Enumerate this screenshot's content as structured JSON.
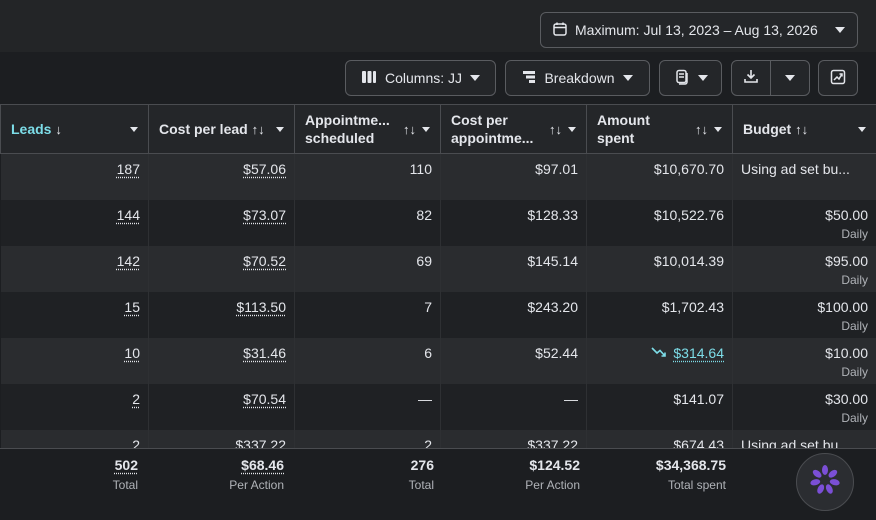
{
  "date_range": {
    "label": "Maximum: Jul 13, 2023 – Aug 13, 2026"
  },
  "toolbar": {
    "columns_label": "Columns: JJ",
    "breakdown_label": "Breakdown"
  },
  "headers": {
    "leads": "Leads",
    "cost_per_lead": "Cost per lead",
    "appointments": "Appointme... scheduled",
    "cost_per_appt": "Cost per appointme...",
    "amount_spent": "Amount spent",
    "budget": "Budget",
    "leads_sort": "↓",
    "both_sort": "↑↓"
  },
  "rows": [
    {
      "leads": "187",
      "cpl": "$57.06",
      "appts": "110",
      "cpa": "$97.01",
      "spent": "$10,670.70",
      "budget": "Using ad set bu...",
      "budget_sub": ""
    },
    {
      "leads": "144",
      "cpl": "$73.07",
      "appts": "82",
      "cpa": "$128.33",
      "spent": "$10,522.76",
      "budget": "$50.00",
      "budget_sub": "Daily"
    },
    {
      "leads": "142",
      "cpl": "$70.52",
      "appts": "69",
      "cpa": "$145.14",
      "spent": "$10,014.39",
      "budget": "$95.00",
      "budget_sub": "Daily"
    },
    {
      "leads": "15",
      "cpl": "$113.50",
      "appts": "7",
      "cpa": "$243.20",
      "spent": "$1,702.43",
      "budget": "$100.00",
      "budget_sub": "Daily"
    },
    {
      "leads": "10",
      "cpl": "$31.46",
      "appts": "6",
      "cpa": "$52.44",
      "spent": "$314.64",
      "budget": "$10.00",
      "budget_sub": "Daily"
    },
    {
      "leads": "2",
      "cpl": "$70.54",
      "appts": "—",
      "cpa": "—",
      "spent": "$141.07",
      "budget": "$30.00",
      "budget_sub": "Daily"
    },
    {
      "leads": "2",
      "cpl": "$337.22",
      "appts": "2",
      "cpa": "$337.22",
      "spent": "$674.43",
      "budget": "Using ad set bu...",
      "budget_sub": ""
    }
  ],
  "totals": {
    "leads": {
      "value": "502",
      "caption": "Total"
    },
    "cpl": {
      "value": "$68.46",
      "caption": "Per Action"
    },
    "appts": {
      "value": "276",
      "caption": "Total"
    },
    "cpa": {
      "value": "$124.52",
      "caption": "Per Action"
    },
    "spent": {
      "value": "$34,368.75",
      "caption": "Total spent"
    }
  },
  "colors": {
    "accent": "#7ddde8",
    "fab_petal": "#7b4fd6"
  },
  "icons": [
    "calendar-icon",
    "columns-icon",
    "breakdown-icon",
    "reports-icon",
    "download-icon",
    "chart-export-icon",
    "trend-down-icon",
    "assistant-icon"
  ]
}
